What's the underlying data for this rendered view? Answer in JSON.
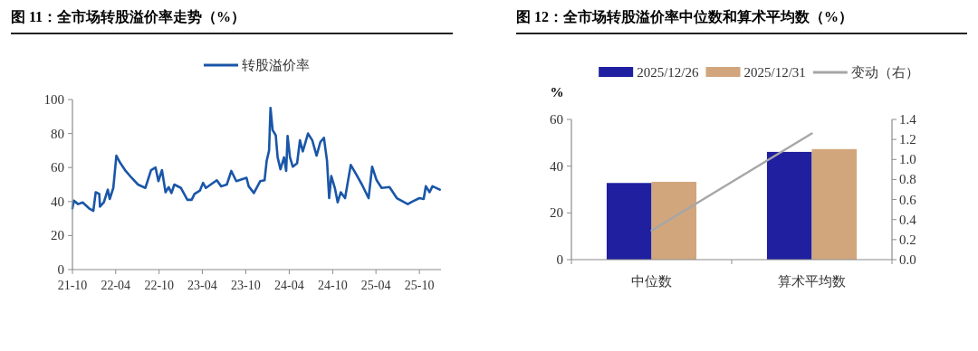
{
  "chart_data": [
    {
      "type": "line",
      "title": "图 11：全市场转股溢价率走势（%）",
      "legend": "top",
      "xlim": [
        "2021-10-01",
        "2025-12-31"
      ],
      "xticks": [
        {
          "value": "2021-10",
          "label": "21-10"
        },
        {
          "value": "2022-04",
          "label": "22-04"
        },
        {
          "value": "2022-10",
          "label": "22-10"
        },
        {
          "value": "2023-04",
          "label": "23-04"
        },
        {
          "value": "2023-10",
          "label": "23-10"
        },
        {
          "value": "2024-04",
          "label": "24-04"
        },
        {
          "value": "2024-10",
          "label": "24-10"
        },
        {
          "value": "2025-04",
          "label": "25-04"
        },
        {
          "value": "2025-10",
          "label": "25-10"
        }
      ],
      "ylim": [
        0,
        100
      ],
      "yticks": [
        0,
        20,
        40,
        60,
        80,
        100
      ],
      "x": [
        "2021-10-01",
        "2021-10-07",
        "2021-10-25",
        "2021-11-13",
        "2021-12-10",
        "2021-12-28",
        "2022-01-07",
        "2022-01-22",
        "2022-01-25",
        "2022-02-10",
        "2022-02-27",
        "2022-03-07",
        "2022-03-22",
        "2022-04-04",
        "2022-04-19",
        "2022-05-13",
        "2022-06-07",
        "2022-07-04",
        "2022-08-04",
        "2022-08-28",
        "2022-09-16",
        "2022-09-28",
        "2022-10-13",
        "2022-10-28",
        "2022-11-10",
        "2022-11-22",
        "2022-12-04",
        "2023-01-01",
        "2023-01-28",
        "2023-02-15",
        "2023-02-27",
        "2023-03-22",
        "2023-04-04",
        "2023-04-16",
        "2023-06-01",
        "2023-06-19",
        "2023-07-13",
        "2023-08-01",
        "2023-08-22",
        "2023-10-04",
        "2023-10-13",
        "2023-11-04",
        "2023-12-01",
        "2023-12-19",
        "2023-12-28",
        "2024-01-07",
        "2024-01-13",
        "2024-01-22",
        "2024-02-04",
        "2024-02-12",
        "2024-02-24",
        "2024-03-10",
        "2024-03-19",
        "2024-03-25",
        "2024-04-04",
        "2024-04-16",
        "2024-05-04",
        "2024-05-16",
        "2024-05-28",
        "2024-06-19",
        "2024-07-07",
        "2024-07-25",
        "2024-08-10",
        "2024-08-25",
        "2024-09-07",
        "2024-09-16",
        "2024-09-25",
        "2024-10-10",
        "2024-10-22",
        "2024-11-04",
        "2024-11-22",
        "2024-12-16",
        "2025-01-04",
        "2025-02-01",
        "2025-03-01",
        "2025-03-16",
        "2025-04-04",
        "2025-04-25",
        "2025-05-28",
        "2025-06-28",
        "2025-08-13",
        "2025-09-01",
        "2025-10-01",
        "2025-10-19",
        "2025-10-28",
        "2025-11-13",
        "2025-11-25",
        "2025-12-26"
      ],
      "series": [
        {
          "name": "转股溢价率",
          "color": "#1a56a8",
          "values": [
            36,
            40.5,
            38.5,
            39.5,
            36,
            34.5,
            45.5,
            44.5,
            37,
            39.5,
            47,
            41.5,
            48,
            67,
            63,
            58,
            54,
            50,
            48,
            58.5,
            60,
            52,
            58.5,
            45.5,
            48.5,
            45,
            50,
            48,
            41,
            41,
            44.5,
            46.5,
            51,
            48,
            52.5,
            49,
            50,
            58,
            52,
            54,
            49,
            45,
            52,
            52.5,
            64,
            70,
            95,
            82,
            79,
            66,
            59,
            66,
            58,
            78.5,
            66,
            60.5,
            62.5,
            76,
            69.5,
            80,
            76,
            67,
            75,
            77.5,
            64,
            42,
            55,
            48,
            39.5,
            45.5,
            42,
            61.5,
            57,
            50,
            42,
            60.5,
            52.5,
            48,
            48.5,
            42,
            38.5,
            40,
            42,
            41.5,
            49,
            45.5,
            49,
            47
          ]
        }
      ]
    },
    {
      "type": "bar",
      "title": "图 12：全市场转股溢价率中位数和算术平均数（%）",
      "legend": "top",
      "ylabel": "%",
      "categories": [
        "中位数",
        "算术平均数"
      ],
      "ylim": [
        0,
        60
      ],
      "yticks": [
        0,
        20,
        40,
        60
      ],
      "y2lim": [
        0,
        1.4
      ],
      "y2ticks": [
        {
          "value": 0,
          "label": "0.0"
        },
        {
          "value": 0.2,
          "label": "0.2"
        },
        {
          "value": 0.4,
          "label": "0.4"
        },
        {
          "value": 0.6,
          "label": "0.6"
        },
        {
          "value": 0.8,
          "label": "0.8"
        },
        {
          "value": 1,
          "label": "1.0"
        },
        {
          "value": 1.2,
          "label": "1.2"
        },
        {
          "value": 1.4,
          "label": "1.4"
        }
      ],
      "series": [
        {
          "name": "2025/12/26",
          "color": "#1f1fa0",
          "values": [
            32.8,
            46.1
          ]
        },
        {
          "name": "2025/12/31",
          "color": "#d2a67c",
          "values": [
            33.3,
            47.3
          ]
        },
        {
          "name": "变动（右）",
          "type": "line",
          "axis": "y2",
          "color": "#a6a6a6",
          "values": [
            0.29,
            1.26
          ]
        }
      ]
    }
  ]
}
